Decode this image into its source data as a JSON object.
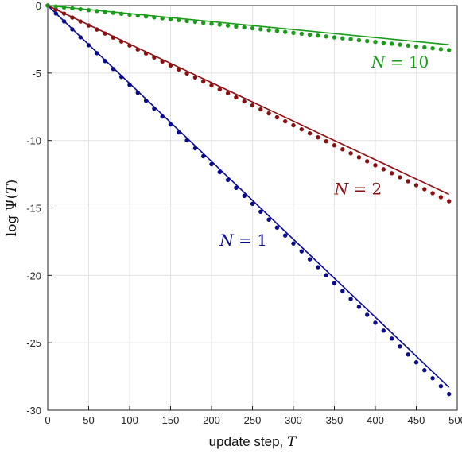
{
  "chart_data": {
    "type": "scatter",
    "xlabel": "update step, T",
    "xlabel_text": "update step, ",
    "xlabel_var": "T",
    "ylabel": "log Ψ(T)",
    "ylabel_text": "log Ψ(",
    "ylabel_var": "T",
    "ylabel_close": ")",
    "xlim": [
      0,
      500
    ],
    "ylim": [
      -30,
      0
    ],
    "xticks": [
      0,
      50,
      100,
      150,
      200,
      250,
      300,
      350,
      400,
      450,
      500
    ],
    "yticks": [
      0,
      -5,
      -10,
      -15,
      -20,
      -25,
      -30
    ],
    "xtick_labels": [
      "0",
      "50",
      "100",
      "150",
      "200",
      "250",
      "300",
      "350",
      "400",
      "450",
      "500"
    ],
    "ytick_labels": [
      "0",
      "-5",
      "-10",
      "-15",
      "-20",
      "-25",
      "-30"
    ],
    "grid": true,
    "series": [
      {
        "name": "N = 1",
        "label_var": "N",
        "label_rest": " = 1",
        "color": "#0a0a8c",
        "points_x": [
          0,
          490
        ],
        "points_y_start": 0,
        "points_y_end": -28.8,
        "points_step": 10,
        "line_x": [
          0,
          490
        ],
        "line_y": [
          0,
          -28.3
        ]
      },
      {
        "name": "N = 2",
        "label_var": "N",
        "label_rest": " = 2",
        "color": "#8b0f0f",
        "points_x": [
          0,
          490
        ],
        "points_y_start": 0,
        "points_y_end": -14.5,
        "points_step": 10,
        "line_x": [
          0,
          490
        ],
        "line_y": [
          0,
          -14.0
        ]
      },
      {
        "name": "N = 10",
        "label_var": "N",
        "label_rest": " = 10",
        "color": "#1a9c1a",
        "points_x": [
          0,
          490
        ],
        "points_y_start": 0,
        "points_y_end": -3.3,
        "points_step": 10,
        "line_x": [
          0,
          490
        ],
        "line_y": [
          0,
          -2.9
        ]
      }
    ]
  }
}
